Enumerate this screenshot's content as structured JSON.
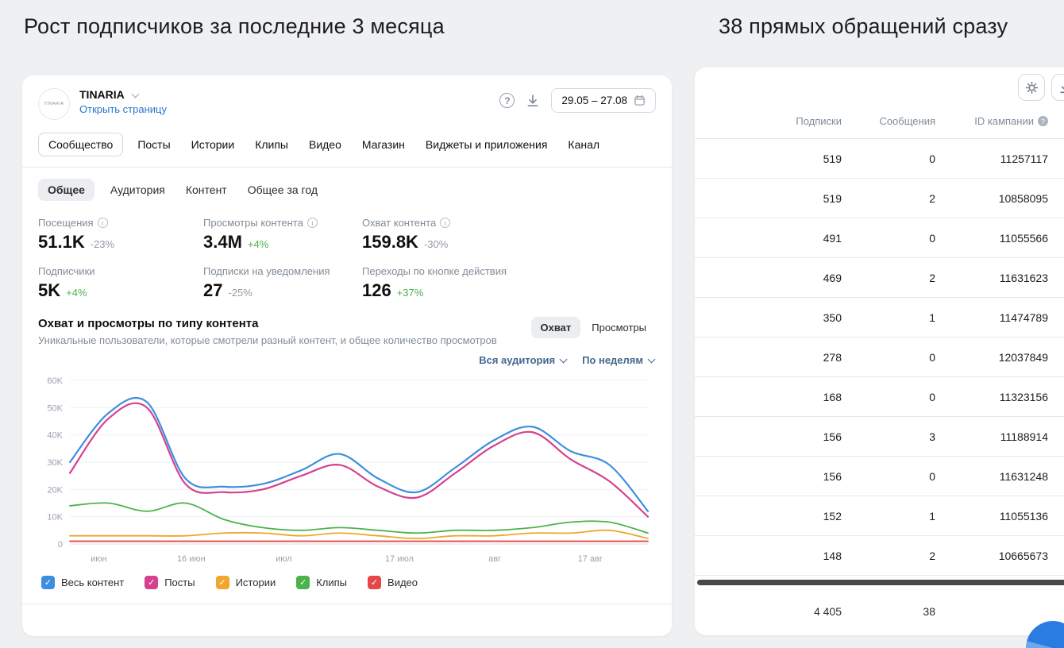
{
  "page": {
    "left_heading": "Рост подписчиков за последние 3 месяца",
    "right_heading": "38 прямых обращений сразу",
    "colors": {
      "background": "#eef0f2",
      "accent_blue": "#2975cc",
      "positive_green": "#4bb34b"
    }
  },
  "stats": {
    "community": {
      "name": "TINARIA",
      "logo": "TINARIA",
      "open_page": "Открыть страницу"
    },
    "date_range": "29.05 – 27.08",
    "tabs": [
      "Сообщество",
      "Посты",
      "Истории",
      "Клипы",
      "Видео",
      "Магазин",
      "Виджеты и приложения",
      "Канал"
    ],
    "active_tab": "Сообщество",
    "subtabs": [
      "Общее",
      "Аудитория",
      "Контент",
      "Общее за год"
    ],
    "active_subtab": "Общее",
    "metrics": [
      {
        "label": "Посещения",
        "info": true,
        "value": "51.1K",
        "delta": "-23%",
        "positive": false
      },
      {
        "label": "Просмотры контента",
        "info": true,
        "value": "3.4M",
        "delta": "+4%",
        "positive": true
      },
      {
        "label": "Охват контента",
        "info": true,
        "value": "159.8K",
        "delta": "-30%",
        "positive": false
      },
      {
        "label": "Подписчики",
        "info": false,
        "value": "5K",
        "delta": "+4%",
        "positive": true
      },
      {
        "label": "Подписки на уведомления",
        "info": false,
        "value": "27",
        "delta": "-25%",
        "positive": false
      },
      {
        "label": "Переходы по кнопке действия",
        "info": false,
        "value": "126",
        "delta": "+37%",
        "positive": true
      }
    ],
    "section": {
      "title": "Охват и просмотры по типу контента",
      "subtitle": "Уникальные пользователи, которые смотрели разный контент, и общее количество просмотров",
      "toggles": [
        "Охват",
        "Просмотры"
      ],
      "active_toggle": "Охват",
      "filters": [
        "Вся аудитория",
        "По неделям"
      ]
    }
  },
  "chart_data": {
    "type": "line",
    "title": "Охват и просмотры по типу контента",
    "ylabel": "",
    "xlabel": "",
    "ylim": [
      0,
      60000
    ],
    "yticks_k": [
      0,
      10,
      20,
      30,
      40,
      50,
      60
    ],
    "ytick_labels": [
      "0",
      "10K",
      "20K",
      "30K",
      "40K",
      "50K",
      "60K"
    ],
    "xticks": [
      {
        "label": "июн",
        "pos": 0.05
      },
      {
        "label": "16 июн",
        "pos": 0.21
      },
      {
        "label": "июл",
        "pos": 0.37
      },
      {
        "label": "17 июл",
        "pos": 0.57
      },
      {
        "label": "авг",
        "pos": 0.735
      },
      {
        "label": "17 авг",
        "pos": 0.9
      }
    ],
    "legend_position": "bottom",
    "grid": true,
    "series": [
      {
        "name": "Весь контент",
        "color": "#3e8ee0",
        "checked": true,
        "values_k": [
          30,
          48,
          52,
          24,
          21,
          22,
          27,
          33,
          24,
          19,
          28,
          38,
          43,
          34,
          29,
          12
        ]
      },
      {
        "name": "Посты",
        "color": "#d6418f",
        "checked": true,
        "values_k": [
          26,
          46,
          50,
          22,
          19,
          20,
          25,
          29,
          21,
          17,
          26,
          36,
          41,
          31,
          23,
          10
        ]
      },
      {
        "name": "Истории",
        "color": "#efa72e",
        "checked": true,
        "values_k": [
          3,
          3,
          3,
          3,
          4,
          4,
          3,
          4,
          3,
          2,
          3,
          3,
          4,
          4,
          5,
          2
        ]
      },
      {
        "name": "Клипы",
        "color": "#4bb34b",
        "checked": true,
        "values_k": [
          14,
          15,
          12,
          15,
          9,
          6,
          5,
          6,
          5,
          4,
          5,
          5,
          6,
          8,
          8,
          4
        ]
      },
      {
        "name": "Видео",
        "color": "#e64646",
        "checked": true,
        "values_k": [
          1,
          1,
          1,
          1,
          1,
          1,
          1,
          1,
          1,
          1,
          1,
          1,
          1,
          1,
          1,
          1
        ]
      }
    ]
  },
  "table": {
    "columns": [
      "Подписки",
      "Сообщения",
      "ID кампании"
    ],
    "rows": [
      [
        "519",
        "0",
        "11257117"
      ],
      [
        "519",
        "2",
        "10858095"
      ],
      [
        "491",
        "0",
        "11055566"
      ],
      [
        "469",
        "2",
        "11631623"
      ],
      [
        "350",
        "1",
        "11474789"
      ],
      [
        "278",
        "0",
        "12037849"
      ],
      [
        "168",
        "0",
        "11323156"
      ],
      [
        "156",
        "3",
        "11188914"
      ],
      [
        "156",
        "0",
        "11631248"
      ],
      [
        "152",
        "1",
        "11055136"
      ],
      [
        "148",
        "2",
        "10665673"
      ]
    ],
    "totals": [
      "4 405",
      "38",
      ""
    ]
  }
}
